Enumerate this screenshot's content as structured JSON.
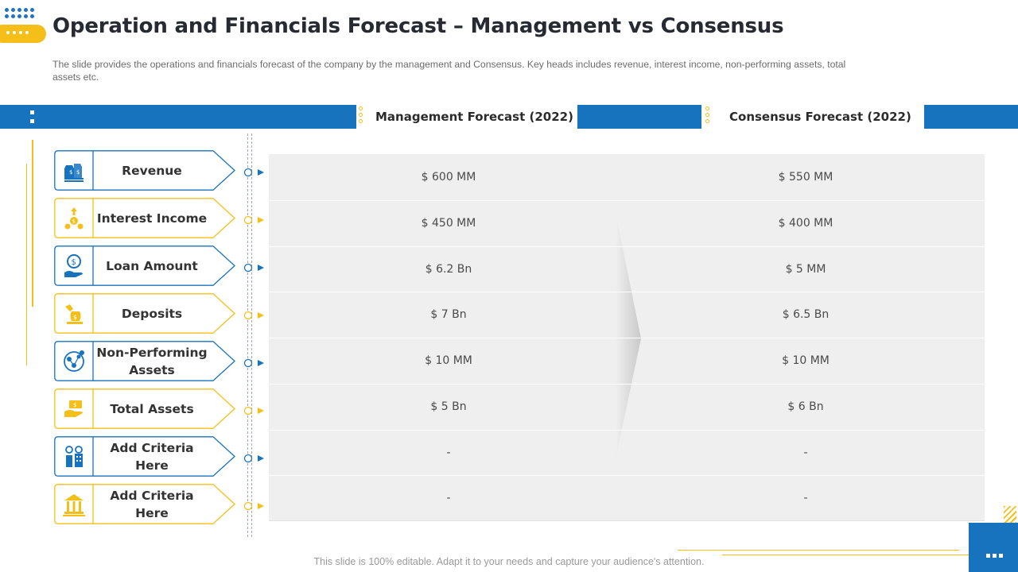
{
  "slide": {
    "title": "Operation and Financials Forecast – Management vs Consensus",
    "subtitle": "The slide provides  the operations  and financials forecast of the company by the management  and Consensus. Key heads includes revenue,  interest income, non-performing assets, total assets etc.",
    "footer": "This slide is 100% editable. Adapt it to your needs and capture your audience's attention."
  },
  "colors": {
    "blue": "#1873bf",
    "yellow": "#f5bf19",
    "table_bg": "#efefef"
  },
  "table": {
    "headers": {
      "management": "Management Forecast (2022)",
      "consensus": "Consensus Forecast (2022)"
    },
    "rows": [
      {
        "criteria": "Revenue",
        "icon": "money-bags-icon",
        "accent": "blue",
        "management": "$ 600 MM",
        "consensus": "$ 550 MM"
      },
      {
        "criteria": "Interest Income",
        "icon": "coins-growth-icon",
        "accent": "yellow",
        "management": "$ 450 MM",
        "consensus": "$ 400 MM"
      },
      {
        "criteria": "Loan Amount",
        "icon": "hand-coin-icon",
        "accent": "blue",
        "management": "$ 6.2 Bn",
        "consensus": "$ 5 MM"
      },
      {
        "criteria": "Deposits",
        "icon": "hand-money-bag-icon",
        "accent": "yellow",
        "management": "$ 7 Bn",
        "consensus": "$ 6.5 Bn"
      },
      {
        "criteria": "Non-Performing Assets",
        "icon": "network-person-icon",
        "accent": "blue",
        "management": "$ 10 MM",
        "consensus": "$ 10 MM"
      },
      {
        "criteria": "Total Assets",
        "icon": "hand-cash-icon",
        "accent": "yellow",
        "management": "$ 5 Bn",
        "consensus": "$ 6 Bn"
      },
      {
        "criteria": "Add Criteria Here",
        "icon": "building-growth-icon",
        "accent": "blue",
        "management": "-",
        "consensus": "-"
      },
      {
        "criteria": "Add Criteria Here",
        "icon": "bank-icon",
        "accent": "yellow",
        "management": "-",
        "consensus": "-"
      }
    ]
  }
}
